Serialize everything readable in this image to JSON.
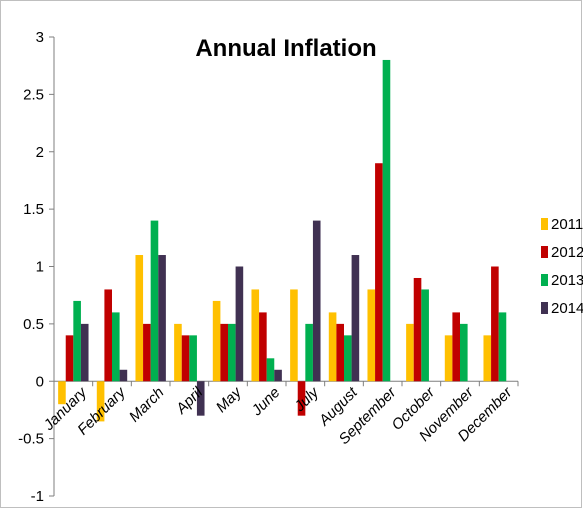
{
  "chart_data": {
    "type": "bar",
    "title": "Annual Inflation",
    "xlabel": "",
    "ylabel": "",
    "ylim": [
      -1,
      3
    ],
    "yticks": [
      "3",
      "2.5",
      "2",
      "1.5",
      "1",
      "0.5",
      "0",
      "-0.5",
      "-1"
    ],
    "ytick_values": [
      3,
      2.5,
      2,
      1.5,
      1,
      0.5,
      0,
      -0.5,
      -1
    ],
    "grid": false,
    "legend_position": "right",
    "categories": [
      "January",
      "February",
      "March",
      "April",
      "May",
      "June",
      "July",
      "August",
      "September",
      "October",
      "November",
      "December"
    ],
    "series": [
      {
        "name": "2011",
        "color": "#FFC000",
        "values": [
          -0.2,
          -0.35,
          1.1,
          0.5,
          0.7,
          0.8,
          0.8,
          0.6,
          0.8,
          0.5,
          0.4,
          0.4
        ]
      },
      {
        "name": "2012",
        "color": "#C00000",
        "values": [
          0.4,
          0.8,
          0.5,
          0.4,
          0.5,
          0.6,
          -0.3,
          0.5,
          1.9,
          0.9,
          0.6,
          1.0
        ]
      },
      {
        "name": "2013",
        "color": "#00B050",
        "values": [
          0.7,
          0.6,
          1.4,
          0.4,
          0.5,
          0.2,
          0.5,
          0.4,
          2.8,
          0.8,
          0.5,
          0.6
        ]
      },
      {
        "name": "2014",
        "color": "#403152",
        "values": [
          0.5,
          0.1,
          1.1,
          -0.3,
          1.0,
          0.1,
          1.4,
          1.1,
          null,
          null,
          null,
          null
        ]
      }
    ]
  }
}
